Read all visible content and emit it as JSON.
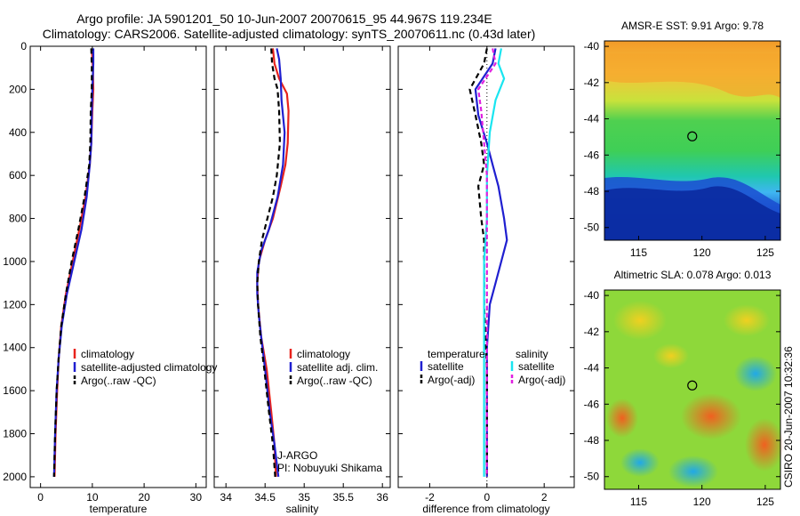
{
  "title": {
    "line1": "Argo profile: JA 5901201_50 10-Jun-2007 20070615_95 44.967S 119.234E",
    "line2": "Climatology: CARS2006. Satellite-adjusted climatology: synTS_20070611.nc (0.43d later)"
  },
  "side_text": "CSIRO 20-Jun-2007 10:32:36",
  "agency": {
    "line1": "J-ARGO",
    "line2": "PI: Nobuyuki Shikama"
  },
  "colors": {
    "climatology": "#e8231c",
    "satellite": "#1f1fd0",
    "argo": "#000000",
    "sat_salinity": "#19e5f0",
    "argo_salinity": "#e020e0"
  },
  "chart_data": [
    {
      "id": "temperature",
      "type": "line",
      "xlabel": "temperature",
      "xlim": [
        -2,
        32
      ],
      "ylim": [
        2050,
        0
      ],
      "xticks": [
        "0",
        "10",
        "20",
        "30"
      ],
      "yticks": [
        "0",
        "200",
        "400",
        "600",
        "800",
        "1000",
        "1200",
        "1400",
        "1600",
        "1800",
        "2000"
      ],
      "legend": [
        "climatology",
        "satellite-adjusted climatology",
        "Argo(..raw -QC)"
      ],
      "series": [
        {
          "name": "climatology",
          "color": "#e8231c",
          "dash": "",
          "points": [
            [
              9.9,
              10
            ],
            [
              10.1,
              100
            ],
            [
              10.2,
              200
            ],
            [
              10.0,
              300
            ],
            [
              9.8,
              450
            ],
            [
              9.5,
              550
            ],
            [
              8.7,
              700
            ],
            [
              7.5,
              850
            ],
            [
              6.2,
              1000
            ],
            [
              4.9,
              1150
            ],
            [
              4.0,
              1300
            ],
            [
              3.5,
              1450
            ],
            [
              3.2,
              1600
            ],
            [
              2.9,
              1800
            ],
            [
              2.7,
              2000
            ]
          ]
        },
        {
          "name": "satellite-adjusted climatology",
          "color": "#1f1fd0",
          "dash": "",
          "points": [
            [
              10.2,
              10
            ],
            [
              10.2,
              80
            ],
            [
              10.0,
              200
            ],
            [
              9.9,
              300
            ],
            [
              9.8,
              450
            ],
            [
              9.5,
              550
            ],
            [
              8.9,
              700
            ],
            [
              7.9,
              850
            ],
            [
              6.5,
              1000
            ],
            [
              5.1,
              1150
            ],
            [
              4.1,
              1300
            ],
            [
              3.5,
              1450
            ],
            [
              3.1,
              1600
            ],
            [
              2.8,
              1800
            ],
            [
              2.6,
              2000
            ]
          ]
        },
        {
          "name": "Argo(..raw -QC)",
          "color": "#000000",
          "dash": "6 4",
          "points": [
            [
              9.8,
              10
            ],
            [
              9.9,
              100
            ],
            [
              9.9,
              200
            ],
            [
              9.7,
              300
            ],
            [
              9.6,
              450
            ],
            [
              9.4,
              550
            ],
            [
              8.5,
              700
            ],
            [
              7.3,
              850
            ],
            [
              6.0,
              1000
            ],
            [
              4.9,
              1150
            ],
            [
              4.0,
              1300
            ],
            [
              3.5,
              1450
            ],
            [
              3.1,
              1600
            ],
            [
              2.8,
              1800
            ],
            [
              2.6,
              2000
            ]
          ]
        }
      ]
    },
    {
      "id": "salinity",
      "type": "line",
      "xlabel": "salinity",
      "xlim": [
        33.85,
        36.1
      ],
      "ylim": [
        2050,
        0
      ],
      "xticks": [
        "34",
        "34.5",
        "35",
        "35.5",
        "36"
      ],
      "legend": [
        "climatology",
        "satellite adj. clim.",
        "Argo(..raw -QC)"
      ],
      "series": [
        {
          "name": "climatology",
          "color": "#e8231c",
          "dash": "",
          "points": [
            [
              34.6,
              10
            ],
            [
              34.62,
              80
            ],
            [
              34.68,
              150
            ],
            [
              34.78,
              220
            ],
            [
              34.8,
              300
            ],
            [
              34.79,
              450
            ],
            [
              34.76,
              550
            ],
            [
              34.7,
              650
            ],
            [
              34.6,
              800
            ],
            [
              34.5,
              900
            ],
            [
              34.42,
              1000
            ],
            [
              34.4,
              1100
            ],
            [
              34.41,
              1200
            ],
            [
              34.45,
              1350
            ],
            [
              34.52,
              1500
            ],
            [
              34.58,
              1700
            ],
            [
              34.62,
              1850
            ],
            [
              34.64,
              2000
            ]
          ]
        },
        {
          "name": "satellite adj. clim.",
          "color": "#1f1fd0",
          "dash": "",
          "points": [
            [
              34.65,
              10
            ],
            [
              34.68,
              60
            ],
            [
              34.7,
              150
            ],
            [
              34.71,
              250
            ],
            [
              34.75,
              400
            ],
            [
              34.73,
              550
            ],
            [
              34.66,
              700
            ],
            [
              34.55,
              850
            ],
            [
              34.45,
              950
            ],
            [
              34.4,
              1050
            ],
            [
              34.4,
              1150
            ],
            [
              34.42,
              1250
            ],
            [
              34.45,
              1350
            ],
            [
              34.5,
              1500
            ],
            [
              34.56,
              1700
            ],
            [
              34.62,
              1850
            ],
            [
              34.67,
              2000
            ]
          ]
        },
        {
          "name": "Argo(..raw -QC)",
          "color": "#000000",
          "dash": "6 4",
          "points": [
            [
              34.58,
              10
            ],
            [
              34.59,
              80
            ],
            [
              34.62,
              150
            ],
            [
              34.66,
              200
            ],
            [
              34.68,
              300
            ],
            [
              34.69,
              450
            ],
            [
              34.65,
              600
            ],
            [
              34.6,
              700
            ],
            [
              34.53,
              800
            ],
            [
              34.46,
              900
            ],
            [
              34.42,
              1000
            ],
            [
              34.4,
              1100
            ],
            [
              34.41,
              1200
            ],
            [
              34.44,
              1350
            ],
            [
              34.49,
              1500
            ],
            [
              34.55,
              1700
            ],
            [
              34.6,
              1850
            ],
            [
              34.63,
              2000
            ]
          ]
        }
      ]
    },
    {
      "id": "difference",
      "type": "line",
      "xlabel": "difference from climatology",
      "xlim": [
        -3.1,
        3.05
      ],
      "ylim": [
        2050,
        0
      ],
      "xticks": [
        "-2",
        "0",
        "2"
      ],
      "legend_left": {
        "title": "temperature",
        "items": [
          "satellite",
          "Argo(-adj)"
        ]
      },
      "legend_right": {
        "title": "salinity",
        "items": [
          "satellite",
          "Argo(-adj)"
        ]
      },
      "series": [
        {
          "name": "temperature satellite",
          "color": "#1f1fd0",
          "dash": "",
          "points": [
            [
              0.3,
              10
            ],
            [
              0.2,
              80
            ],
            [
              -0.4,
              200
            ],
            [
              -0.3,
              320
            ],
            [
              0.0,
              450
            ],
            [
              0.2,
              550
            ],
            [
              0.4,
              650
            ],
            [
              0.6,
              800
            ],
            [
              0.7,
              900
            ],
            [
              0.5,
              1000
            ],
            [
              0.3,
              1100
            ],
            [
              0.1,
              1200
            ],
            [
              0.0,
              1400
            ],
            [
              0.0,
              1700
            ],
            [
              0.0,
              2000
            ]
          ]
        },
        {
          "name": "temperature Argo(-adj)",
          "color": "#000000",
          "dash": "6 4",
          "points": [
            [
              0.0,
              10
            ],
            [
              -0.1,
              80
            ],
            [
              -0.6,
              200
            ],
            [
              -0.4,
              320
            ],
            [
              -0.2,
              450
            ],
            [
              -0.1,
              550
            ],
            [
              -0.3,
              650
            ],
            [
              -0.2,
              800
            ],
            [
              -0.1,
              900
            ],
            [
              -0.1,
              1000
            ],
            [
              -0.1,
              1200
            ],
            [
              0.0,
              1500
            ],
            [
              0.0,
              2000
            ]
          ]
        },
        {
          "name": "salinity satellite",
          "color": "#19e5f0",
          "dash": "",
          "points": [
            [
              0.5,
              10
            ],
            [
              0.4,
              80
            ],
            [
              0.6,
              150
            ],
            [
              0.3,
              250
            ],
            [
              0.1,
              400
            ],
            [
              0.0,
              600
            ],
            [
              0.0,
              800
            ],
            [
              -0.1,
              1000
            ],
            [
              -0.1,
              1200
            ],
            [
              -0.1,
              1400
            ],
            [
              -0.1,
              1600
            ],
            [
              -0.1,
              1800
            ],
            [
              -0.1,
              2000
            ]
          ]
        },
        {
          "name": "salinity Argo(-adj)",
          "color": "#e020e0",
          "dash": "5 3",
          "points": [
            [
              0.2,
              10
            ],
            [
              0.3,
              80
            ],
            [
              -0.3,
              200
            ],
            [
              -0.2,
              300
            ],
            [
              -0.1,
              450
            ],
            [
              0.0,
              600
            ],
            [
              0.0,
              800
            ],
            [
              0.0,
              1000
            ],
            [
              0.0,
              1200
            ],
            [
              0.0,
              1500
            ],
            [
              0.0,
              2000
            ]
          ]
        }
      ]
    },
    {
      "id": "sst_map",
      "type": "heatmap",
      "title": "AMSR-E SST: 9.91 Argo: 9.78",
      "xlim": [
        112.3,
        126.2
      ],
      "ylim": [
        -50.7,
        -39.7
      ],
      "xticks": [
        "115",
        "120",
        "125"
      ],
      "yticks": [
        "-40",
        "-42",
        "-44",
        "-46",
        "-48",
        "-50"
      ],
      "marker": {
        "lon": 119.234,
        "lat": -44.967
      }
    },
    {
      "id": "sla_map",
      "type": "heatmap",
      "title": "Altimetric SLA: 0.078 Argo: 0.013",
      "xlim": [
        112.3,
        126.2
      ],
      "ylim": [
        -50.7,
        -39.7
      ],
      "xticks": [
        "115",
        "120",
        "125"
      ],
      "yticks": [
        "-40",
        "-42",
        "-44",
        "-46",
        "-48",
        "-50"
      ],
      "marker": {
        "lon": 119.234,
        "lat": -44.967
      }
    }
  ]
}
